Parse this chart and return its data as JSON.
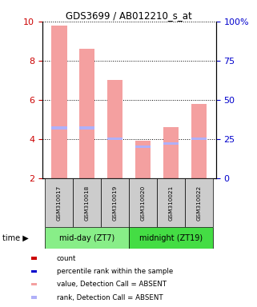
{
  "title": "GDS3699 / AB012210_s_at",
  "samples": [
    "GSM310017",
    "GSM310018",
    "GSM310019",
    "GSM310020",
    "GSM310021",
    "GSM310022"
  ],
  "value_bars": [
    9.8,
    8.6,
    7.0,
    3.9,
    4.6,
    5.8
  ],
  "rank_markers": [
    32,
    32,
    25,
    20,
    22,
    25
  ],
  "bar_color_value": "#f4a0a0",
  "bar_color_rank": "#b0b0f8",
  "ylim_left": [
    2,
    10
  ],
  "ylim_right": [
    0,
    100
  ],
  "yticks_left": [
    2,
    4,
    6,
    8,
    10
  ],
  "yticks_right": [
    0,
    25,
    50,
    75,
    100
  ],
  "ylabel_left_color": "#cc0000",
  "ylabel_right_color": "#0000cc",
  "group_label_1": "mid-day (ZT7)",
  "group_label_2": "midnight (ZT19)",
  "group_color_1": "#88ee88",
  "group_color_2": "#44dd44",
  "legend_items": [
    {
      "label": "count",
      "color": "#cc0000"
    },
    {
      "label": "percentile rank within the sample",
      "color": "#0000cc"
    },
    {
      "label": "value, Detection Call = ABSENT",
      "color": "#f4a0a0"
    },
    {
      "label": "rank, Detection Call = ABSENT",
      "color": "#b0b0f8"
    }
  ]
}
